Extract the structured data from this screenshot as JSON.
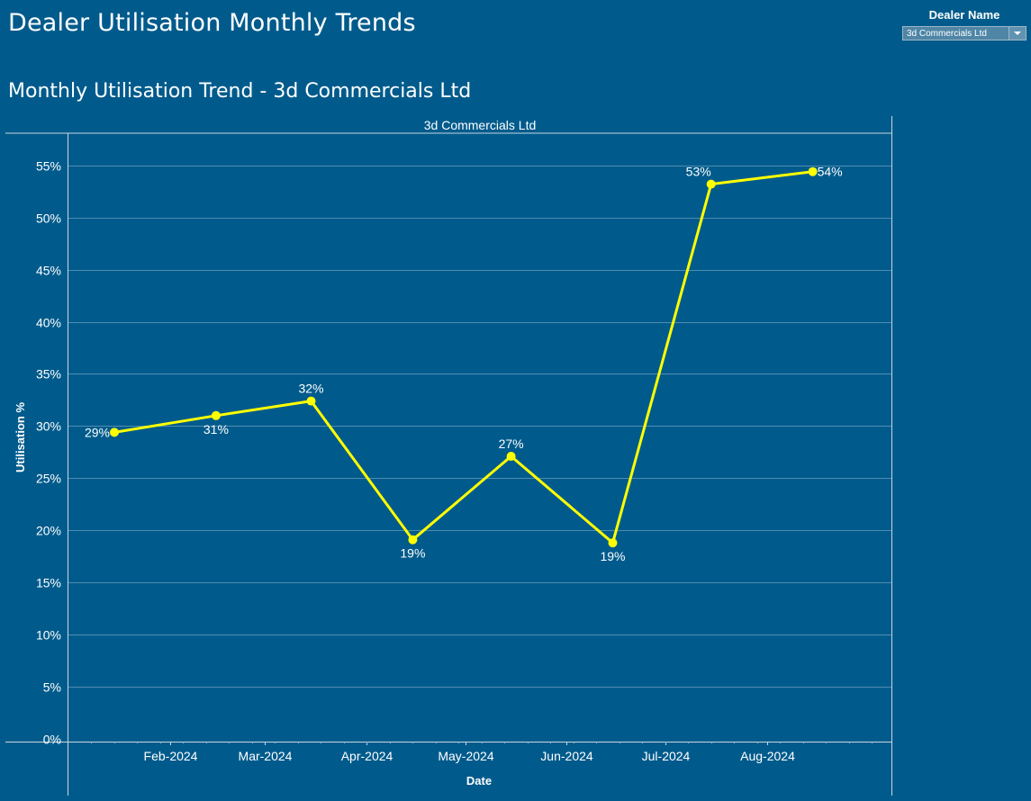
{
  "dashboard": {
    "title": "Dealer Utilisation Monthly Trends"
  },
  "filter": {
    "label": "Dealer Name",
    "selected": "3d Commercials Ltd"
  },
  "chart_data": {
    "type": "line",
    "title": "Monthly Utilisation Trend - 3d Commercials Ltd",
    "pane_header": "3d Commercials Ltd",
    "xlabel": "Date",
    "ylabel": "Utilisation %",
    "ylim": [
      0,
      58
    ],
    "yticks": [
      0,
      5,
      10,
      15,
      20,
      25,
      30,
      35,
      40,
      45,
      50,
      55
    ],
    "ytick_labels": [
      "0%",
      "5%",
      "10%",
      "15%",
      "20%",
      "25%",
      "30%",
      "35%",
      "40%",
      "45%",
      "50%",
      "55%"
    ],
    "xlim": [
      "2024-01-01",
      "2024-09-08"
    ],
    "xticks": [
      "2024-02-01",
      "2024-03-01",
      "2024-04-01",
      "2024-05-01",
      "2024-06-01",
      "2024-07-01",
      "2024-08-01"
    ],
    "xtick_labels": [
      "Feb-2024",
      "Mar-2024",
      "Apr-2024",
      "May-2024",
      "Jun-2024",
      "Jul-2024",
      "Aug-2024"
    ],
    "grid": true,
    "line_color": "#ffff00",
    "x": [
      "2024-01-15",
      "2024-02-15",
      "2024-03-15",
      "2024-04-15",
      "2024-05-15",
      "2024-06-15",
      "2024-07-15",
      "2024-08-15"
    ],
    "values": [
      29.4,
      31.0,
      32.4,
      19.1,
      27.1,
      18.8,
      53.2,
      54.4
    ],
    "data_labels": [
      "29%",
      "31%",
      "32%",
      "19%",
      "27%",
      "19%",
      "53%",
      "54%"
    ]
  }
}
